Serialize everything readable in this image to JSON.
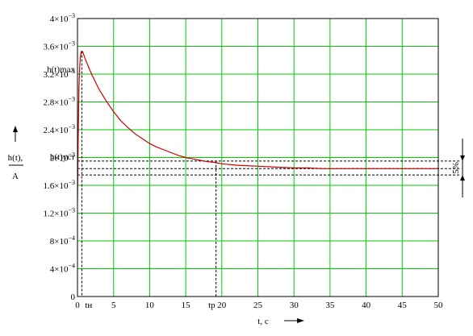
{
  "chart_data": {
    "type": "line",
    "xlabel": "t, c",
    "ylabel_top": "h(t),",
    "ylabel_bottom": "A",
    "xlim": [
      0,
      50
    ],
    "ylim": [
      0,
      0.004
    ],
    "x_ticks": [
      "0",
      "5",
      "10",
      "15",
      "20",
      "25",
      "30",
      "35",
      "40",
      "45",
      "50"
    ],
    "y_ticks": [
      {
        "value": 0,
        "base": "0",
        "exp": ""
      },
      {
        "value": 0.0004,
        "base": "4×10",
        "exp": "−4"
      },
      {
        "value": 0.0008,
        "base": "8×10",
        "exp": "−4"
      },
      {
        "value": 0.0012,
        "base": "1.2×10",
        "exp": "−3"
      },
      {
        "value": 0.0016,
        "base": "1.6×10",
        "exp": "−3"
      },
      {
        "value": 0.002,
        "base": "2×10",
        "exp": "−3"
      },
      {
        "value": 0.0024,
        "base": "2.4×10",
        "exp": "−3"
      },
      {
        "value": 0.0028,
        "base": "2.8×10",
        "exp": "−3"
      },
      {
        "value": 0.0032,
        "base": "3.2×10",
        "exp": "−3"
      },
      {
        "value": 0.0036,
        "base": "3.6×10",
        "exp": "−3"
      },
      {
        "value": 0.004,
        "base": "4×10",
        "exp": "−3"
      }
    ],
    "grid": true,
    "series": [
      {
        "color": "#cc0000",
        "x": [
          0,
          0.1,
          0.2,
          0.3,
          0.4,
          0.5,
          0.6,
          0.7,
          0.8,
          1,
          1.5,
          2,
          3,
          4,
          5,
          6,
          7,
          8,
          9,
          10,
          11,
          12,
          13,
          14,
          15,
          16,
          17,
          18,
          19,
          20,
          22,
          24,
          26,
          28,
          30,
          32,
          34,
          36,
          38,
          40,
          41,
          45,
          50
        ],
        "y": [
          0.00138,
          0.0023,
          0.003,
          0.0033,
          0.00345,
          0.00352,
          0.00353,
          0.00352,
          0.0035,
          0.00344,
          0.00331,
          0.00319,
          0.00298,
          0.00281,
          0.00266,
          0.00253,
          0.00243,
          0.00234,
          0.00227,
          0.0022,
          0.00215,
          0.00211,
          0.00207,
          0.00203,
          0.002,
          0.00198,
          0.00196,
          0.00194,
          0.00193,
          0.00191,
          0.00189,
          0.00188,
          0.00187,
          0.00186,
          0.00185,
          0.00185,
          0.00184,
          0.00184,
          0.00184,
          0.00184,
          0.00184,
          0.00184,
          0.00184
        ]
      }
    ],
    "annotations": {
      "h_max_label": "h(t)max",
      "h_max_value": 0.00353,
      "h_max_t": 0.6,
      "h_ust_label": "h(t)уст",
      "h_ust_value": 0.00184,
      "band_upper": 0.00195,
      "band_lower": 0.00175,
      "band_label": "5%",
      "tn_label": "tн",
      "tp_label": "tp",
      "tp_value": 19.2
    }
  }
}
